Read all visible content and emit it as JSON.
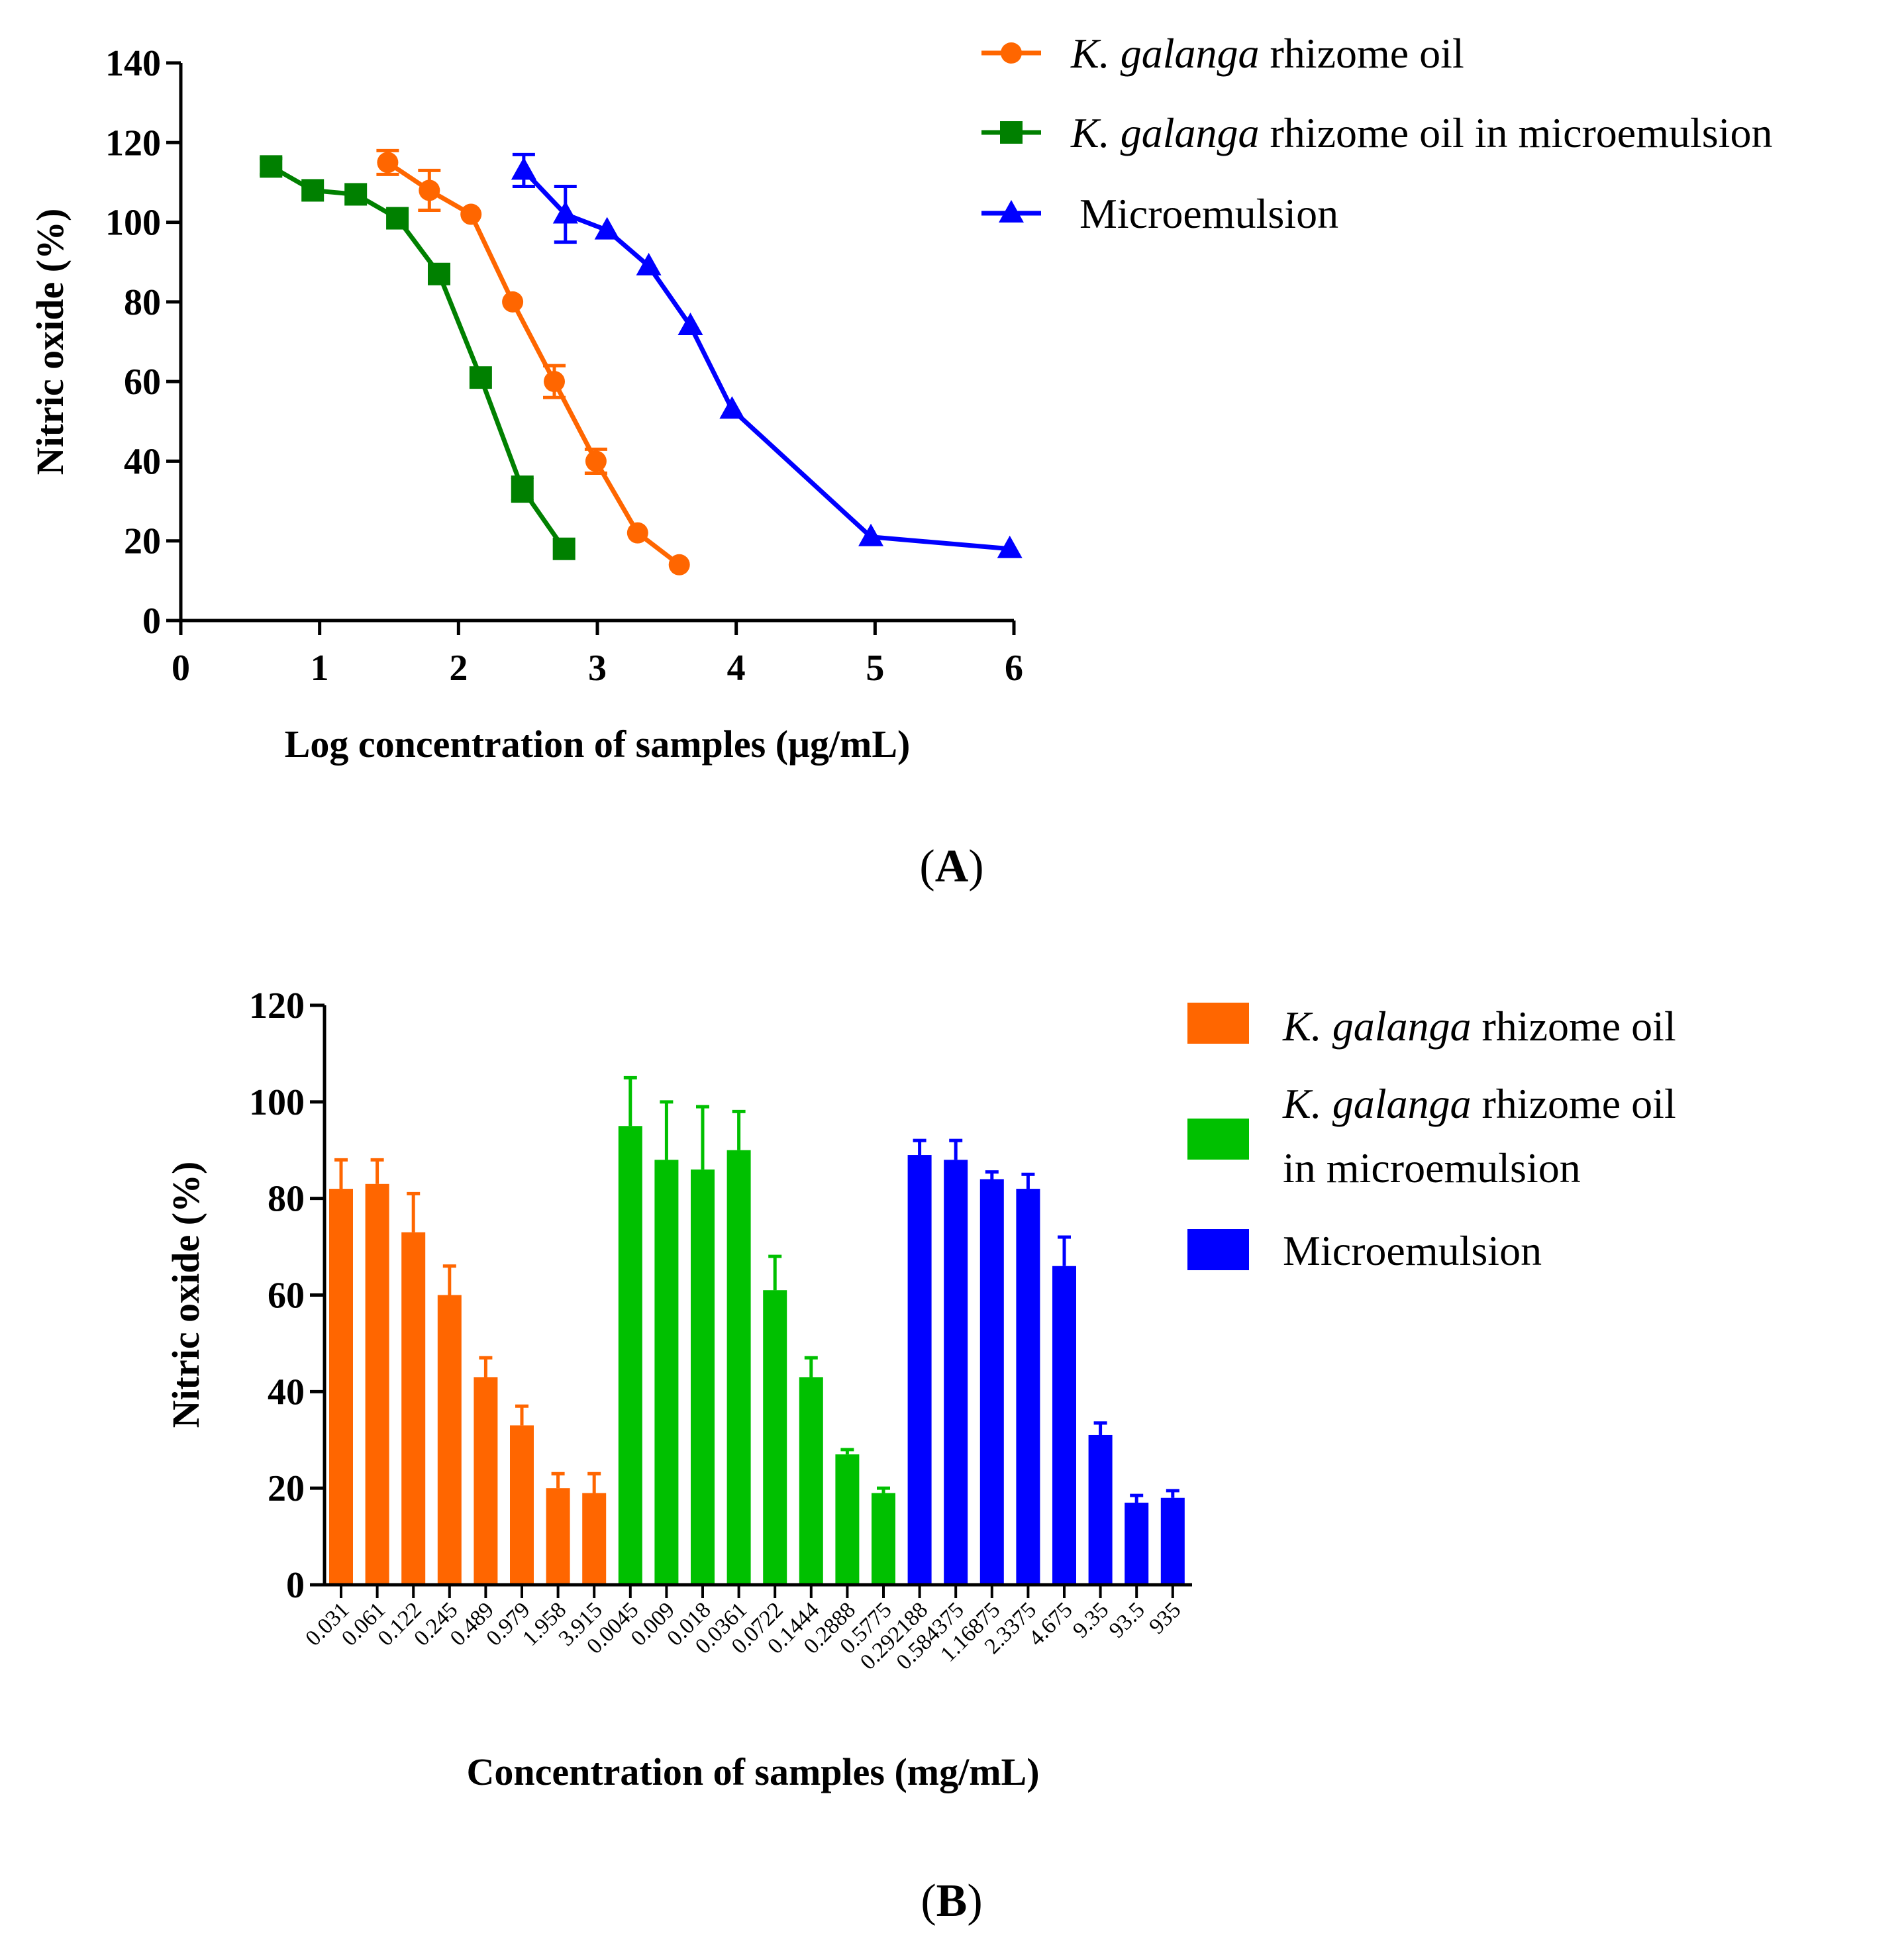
{
  "chart_data": [
    {
      "panel": "A",
      "type": "line",
      "xlabel": "Log concentration of samples (μg/mL)",
      "ylabel": "Nitric oxide (%)",
      "xlim": [
        0,
        6
      ],
      "ylim": [
        0,
        140
      ],
      "xticks": [
        "0",
        "1",
        "2",
        "3",
        "4",
        "5",
        "6"
      ],
      "yticks": [
        "0",
        "20",
        "40",
        "60",
        "80",
        "100",
        "120",
        "140"
      ],
      "legend": {
        "position": "top-right, outside plot"
      },
      "series": [
        {
          "name_italic": "K. galanga",
          "name_rest": " rhizome oil",
          "color": "#ff6600",
          "marker": "circle",
          "x": [
            1.49,
            1.79,
            2.09,
            2.39,
            2.69,
            2.99,
            3.29,
            3.59
          ],
          "y": [
            115,
            108,
            102,
            80,
            60,
            40,
            22,
            14
          ],
          "err": [
            3,
            5,
            1,
            1.5,
            4,
            3,
            1,
            1
          ]
        },
        {
          "name_italic": "K. galanga",
          "name_rest": " rhizome oil in microemulsion",
          "color": "#008000",
          "marker": "square",
          "x": [
            0.65,
            0.95,
            1.26,
            1.56,
            1.86,
            2.16,
            2.46,
            2.76
          ],
          "y": [
            114,
            108,
            107,
            101,
            87,
            61,
            33,
            18
          ],
          "err": [
            2,
            1,
            1,
            1,
            1,
            1,
            3,
            1
          ]
        },
        {
          "name_italic": "",
          "name_rest": "Microemulsion",
          "color": "#0000ff",
          "marker": "triangle",
          "x": [
            2.47,
            2.77,
            3.07,
            3.37,
            3.67,
            3.97,
            4.97,
            5.97
          ],
          "y": [
            113,
            102,
            98,
            89,
            74,
            53,
            21,
            18
          ],
          "err": [
            4,
            7,
            1,
            1,
            1,
            1,
            1,
            1
          ]
        }
      ]
    },
    {
      "panel": "B",
      "type": "bar",
      "xlabel": "Concentration of samples (mg/mL)",
      "ylabel": "Nitric oxide (%)",
      "ylim": [
        0,
        120
      ],
      "yticks": [
        "0",
        "20",
        "40",
        "60",
        "80",
        "100",
        "120"
      ],
      "legend": {
        "position": "top-right, outside plot"
      },
      "groups": [
        {
          "name_italic": "K. galanga",
          "name_rest": " rhizome oil",
          "color": "#ff6600",
          "categories": [
            "0.031",
            "0.061",
            "0.122",
            "0.245",
            "0.489",
            "0.979",
            "1.958",
            "3.915"
          ],
          "values": [
            82,
            83,
            73,
            60,
            43,
            33,
            20,
            19
          ],
          "err": [
            6,
            5,
            8,
            6,
            4,
            4,
            3,
            4
          ]
        },
        {
          "name_italic": "K. galanga",
          "name_rest": " rhizome oil",
          "name_line2": " in microemulsion",
          "color": "#00c000",
          "categories": [
            "0.0045",
            "0.009",
            "0.018",
            "0.0361",
            "0.0722",
            "0.1444",
            "0.2888",
            "0.5775"
          ],
          "values": [
            95,
            88,
            86,
            90,
            61,
            43,
            27,
            19
          ],
          "err": [
            10,
            12,
            13,
            8,
            7,
            4,
            1,
            1
          ]
        },
        {
          "name_italic": "",
          "name_rest": "Microemulsion",
          "color": "#0000ff",
          "categories": [
            "0.292188",
            "0.584375",
            "1.16875",
            "2.3375",
            "4.675",
            "9.35",
            "93.5",
            "935"
          ],
          "values": [
            89,
            88,
            84,
            82,
            66,
            31,
            17,
            18
          ],
          "err": [
            3,
            4,
            1.5,
            3,
            6,
            2.5,
            1.5,
            1.5
          ]
        }
      ]
    }
  ]
}
